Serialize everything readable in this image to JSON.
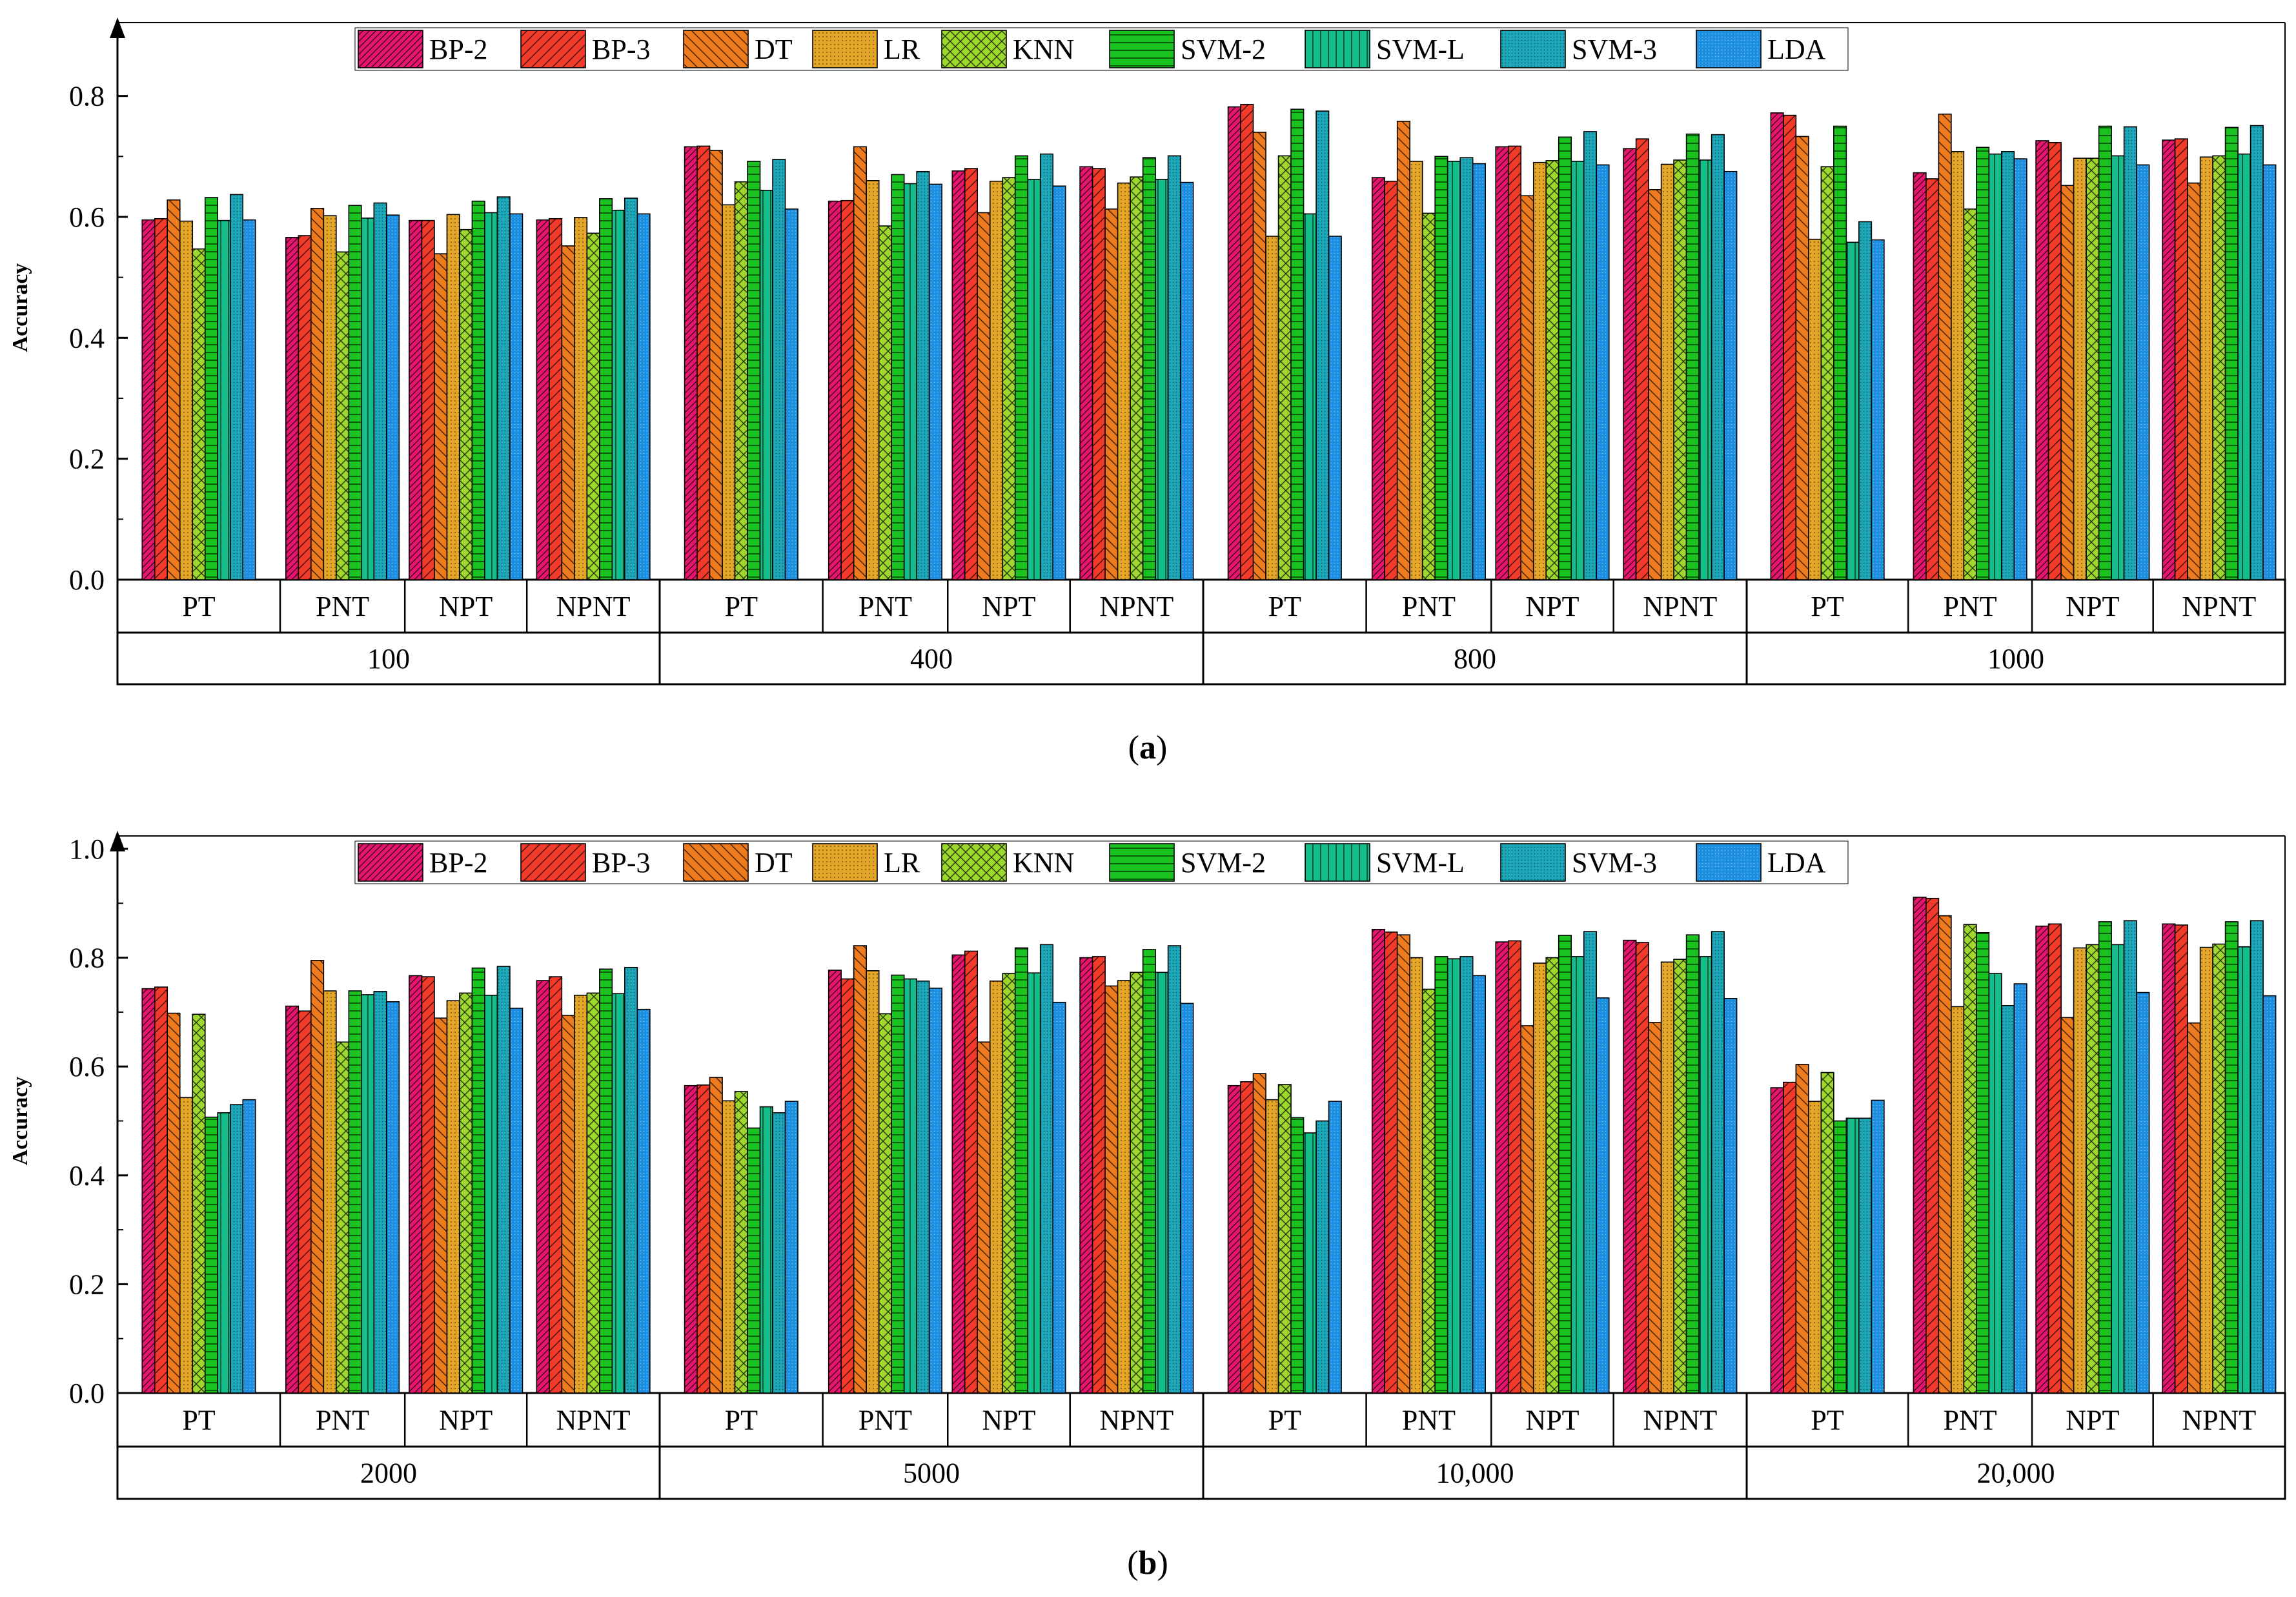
{
  "legend": {
    "series": [
      {
        "key": "bp2",
        "name": "BP-2",
        "color": "#e8156f",
        "pattern": "diag-right-dense"
      },
      {
        "key": "bp3",
        "name": "BP-3",
        "color": "#f23a2a",
        "pattern": "diag-right"
      },
      {
        "key": "dt",
        "name": "DT",
        "color": "#ee7a1e",
        "pattern": "diag-left"
      },
      {
        "key": "lr",
        "name": "LR",
        "color": "#e3a62a",
        "pattern": "dots"
      },
      {
        "key": "knn",
        "name": "KNN",
        "color": "#9dd62c",
        "pattern": "cross"
      },
      {
        "key": "svm2",
        "name": "SVM-2",
        "color": "#19c21e",
        "pattern": "horizontal"
      },
      {
        "key": "svml",
        "name": "SVM-L",
        "color": "#14be8a",
        "pattern": "vertical"
      },
      {
        "key": "svm3",
        "name": "SVM-3",
        "color": "#1ea7b8",
        "pattern": "fine-dots"
      },
      {
        "key": "lda",
        "name": "LDA",
        "color": "#1c8fe0",
        "pattern": "fine-dots-light"
      }
    ]
  },
  "chart_data": [
    {
      "panel_label": "(a)",
      "panel_letter": "a",
      "type": "bar",
      "ylabel": "Accuracy",
      "ylim": [
        0.0,
        0.9
      ],
      "yticks": [
        "0.0",
        "0.2",
        "0.4",
        "0.6",
        "0.8"
      ],
      "ytick_values": [
        0.0,
        0.2,
        0.4,
        0.6,
        0.8
      ],
      "groups": [
        {
          "label": "100",
          "subgroups": [
            {
              "label": "PT",
              "values": [
                0.595,
                0.597,
                0.628,
                0.593,
                0.547,
                0.632,
                0.594,
                0.637,
                0.595
              ]
            },
            {
              "label": "PNT",
              "values": [
                0.566,
                0.569,
                0.614,
                0.602,
                0.542,
                0.619,
                0.598,
                0.623,
                0.603
              ]
            },
            {
              "label": "NPT",
              "values": [
                0.594,
                0.594,
                0.539,
                0.604,
                0.579,
                0.626,
                0.607,
                0.633,
                0.605
              ]
            },
            {
              "label": "NPNT",
              "values": [
                0.595,
                0.597,
                0.552,
                0.599,
                0.573,
                0.63,
                0.611,
                0.631,
                0.605
              ]
            }
          ]
        },
        {
          "label": "400",
          "subgroups": [
            {
              "label": "PT",
              "values": [
                0.716,
                0.717,
                0.71,
                0.62,
                0.658,
                0.692,
                0.644,
                0.695,
                0.613
              ]
            },
            {
              "label": "PNT",
              "values": [
                0.626,
                0.627,
                0.716,
                0.66,
                0.585,
                0.67,
                0.655,
                0.675,
                0.654
              ]
            },
            {
              "label": "NPT",
              "values": [
                0.676,
                0.68,
                0.607,
                0.659,
                0.665,
                0.701,
                0.662,
                0.704,
                0.651
              ]
            },
            {
              "label": "NPNT",
              "values": [
                0.683,
                0.68,
                0.613,
                0.656,
                0.666,
                0.698,
                0.662,
                0.701,
                0.657
              ]
            }
          ]
        },
        {
          "label": "800",
          "subgroups": [
            {
              "label": "PT",
              "values": [
                0.782,
                0.786,
                0.74,
                0.568,
                0.701,
                0.778,
                0.605,
                0.775,
                0.568
              ]
            },
            {
              "label": "PNT",
              "values": [
                0.665,
                0.659,
                0.758,
                0.692,
                0.606,
                0.7,
                0.692,
                0.698,
                0.688
              ]
            },
            {
              "label": "NPT",
              "values": [
                0.716,
                0.717,
                0.635,
                0.69,
                0.693,
                0.732,
                0.692,
                0.741,
                0.686
              ]
            },
            {
              "label": "NPNT",
              "values": [
                0.713,
                0.729,
                0.645,
                0.687,
                0.694,
                0.737,
                0.694,
                0.736,
                0.675
              ]
            }
          ]
        },
        {
          "label": "1000",
          "subgroups": [
            {
              "label": "PT",
              "values": [
                0.772,
                0.768,
                0.733,
                0.563,
                0.683,
                0.75,
                0.558,
                0.592,
                0.562
              ]
            },
            {
              "label": "PNT",
              "values": [
                0.673,
                0.663,
                0.77,
                0.708,
                0.613,
                0.715,
                0.704,
                0.708,
                0.696
              ]
            },
            {
              "label": "NPT",
              "values": [
                0.726,
                0.723,
                0.652,
                0.697,
                0.697,
                0.75,
                0.701,
                0.749,
                0.686
              ]
            },
            {
              "label": "NPNT",
              "values": [
                0.727,
                0.729,
                0.656,
                0.699,
                0.701,
                0.748,
                0.704,
                0.751,
                0.686
              ]
            }
          ]
        }
      ]
    },
    {
      "panel_label": "(b)",
      "panel_letter": "b",
      "type": "bar",
      "ylabel": "Accuracy",
      "ylim": [
        0.0,
        1.0
      ],
      "yticks": [
        "0.0",
        "0.2",
        "0.4",
        "0.6",
        "0.8",
        "1.0"
      ],
      "ytick_values": [
        0.0,
        0.2,
        0.4,
        0.6,
        0.8,
        1.0
      ],
      "groups": [
        {
          "label": "2000",
          "subgroups": [
            {
              "label": "PT",
              "values": [
                0.743,
                0.746,
                0.698,
                0.543,
                0.696,
                0.507,
                0.515,
                0.53,
                0.539
              ]
            },
            {
              "label": "PNT",
              "values": [
                0.711,
                0.702,
                0.795,
                0.739,
                0.645,
                0.739,
                0.732,
                0.738,
                0.719
              ]
            },
            {
              "label": "NPT",
              "values": [
                0.767,
                0.765,
                0.689,
                0.721,
                0.735,
                0.781,
                0.731,
                0.784,
                0.707
              ]
            },
            {
              "label": "NPNT",
              "values": [
                0.758,
                0.765,
                0.694,
                0.731,
                0.735,
                0.779,
                0.734,
                0.782,
                0.705
              ]
            }
          ]
        },
        {
          "label": "5000",
          "subgroups": [
            {
              "label": "PT",
              "values": [
                0.565,
                0.566,
                0.58,
                0.537,
                0.554,
                0.487,
                0.526,
                0.515,
                0.536
              ]
            },
            {
              "label": "PNT",
              "values": [
                0.777,
                0.761,
                0.822,
                0.776,
                0.697,
                0.768,
                0.761,
                0.757,
                0.744
              ]
            },
            {
              "label": "NPT",
              "values": [
                0.805,
                0.812,
                0.645,
                0.757,
                0.771,
                0.818,
                0.772,
                0.824,
                0.718
              ]
            },
            {
              "label": "NPNT",
              "values": [
                0.8,
                0.802,
                0.748,
                0.758,
                0.773,
                0.815,
                0.773,
                0.822,
                0.716
              ]
            }
          ]
        },
        {
          "label": "10,000",
          "subgroups": [
            {
              "label": "PT",
              "values": [
                0.565,
                0.572,
                0.587,
                0.539,
                0.567,
                0.506,
                0.478,
                0.5,
                0.536
              ]
            },
            {
              "label": "PNT",
              "values": [
                0.852,
                0.847,
                0.842,
                0.8,
                0.742,
                0.802,
                0.798,
                0.802,
                0.767
              ]
            },
            {
              "label": "NPT",
              "values": [
                0.829,
                0.831,
                0.675,
                0.79,
                0.8,
                0.841,
                0.802,
                0.848,
                0.726
              ]
            },
            {
              "label": "NPNT",
              "values": [
                0.832,
                0.828,
                0.681,
                0.792,
                0.797,
                0.842,
                0.802,
                0.848,
                0.725
              ]
            }
          ]
        },
        {
          "label": "20,000",
          "subgroups": [
            {
              "label": "PT",
              "values": [
                0.561,
                0.571,
                0.604,
                0.536,
                0.589,
                0.5,
                0.505,
                0.505,
                0.538
              ]
            },
            {
              "label": "PNT",
              "values": [
                0.911,
                0.909,
                0.877,
                0.71,
                0.861,
                0.846,
                0.771,
                0.712,
                0.752
              ]
            },
            {
              "label": "NPT",
              "values": [
                0.858,
                0.862,
                0.69,
                0.818,
                0.824,
                0.866,
                0.824,
                0.868,
                0.736
              ]
            },
            {
              "label": "NPNT",
              "values": [
                0.862,
                0.86,
                0.68,
                0.819,
                0.825,
                0.866,
                0.82,
                0.868,
                0.73
              ]
            }
          ]
        }
      ]
    }
  ]
}
